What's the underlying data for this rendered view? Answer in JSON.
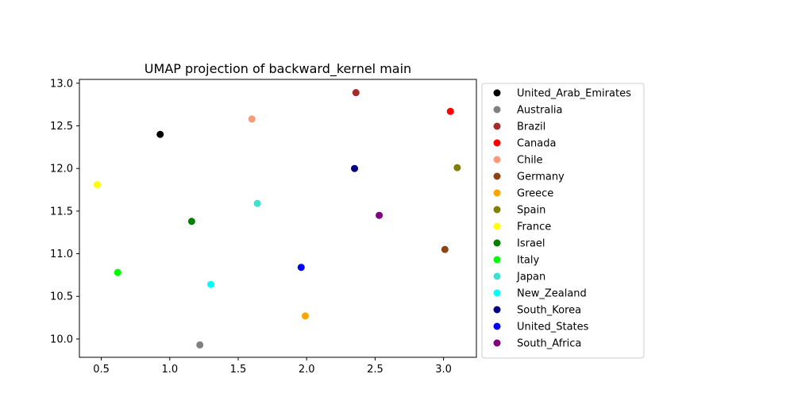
{
  "chart_data": {
    "type": "scatter",
    "title": "UMAP projection of backward_kernel main",
    "xlabel": "",
    "ylabel": "",
    "xlim": [
      0.34,
      3.24
    ],
    "ylim": [
      9.785,
      13.045
    ],
    "xticks": [
      0.5,
      1.0,
      1.5,
      2.0,
      2.5,
      3.0
    ],
    "yticks": [
      10.0,
      10.5,
      11.0,
      11.5,
      12.0,
      12.5,
      13.0
    ],
    "xtick_labels": [
      "0.5",
      "1.0",
      "1.5",
      "2.0",
      "2.5",
      "3.0"
    ],
    "ytick_labels": [
      "10.0",
      "10.5",
      "11.0",
      "11.5",
      "12.0",
      "12.5",
      "13.0"
    ],
    "grid": false,
    "legend_position": "outside right",
    "series": [
      {
        "name": "United_Arab_Emirates",
        "color": "#000000",
        "x": 0.93,
        "y": 12.4
      },
      {
        "name": "Australia",
        "color": "#808080",
        "x": 1.22,
        "y": 9.93
      },
      {
        "name": "Brazil",
        "color": "#a52a2a",
        "x": 2.36,
        "y": 12.89
      },
      {
        "name": "Canada",
        "color": "#ff0000",
        "x": 3.05,
        "y": 12.67
      },
      {
        "name": "Chile",
        "color": "#fa9a7a",
        "x": 1.6,
        "y": 12.58
      },
      {
        "name": "Germany",
        "color": "#8b4513",
        "x": 3.01,
        "y": 11.05
      },
      {
        "name": "Greece",
        "color": "#ffa500",
        "x": 1.99,
        "y": 10.27
      },
      {
        "name": "Spain",
        "color": "#808000",
        "x": 3.1,
        "y": 12.01
      },
      {
        "name": "France",
        "color": "#ffff00",
        "x": 0.47,
        "y": 11.81
      },
      {
        "name": "Israel",
        "color": "#008000",
        "x": 1.16,
        "y": 11.38
      },
      {
        "name": "Italy",
        "color": "#00ff00",
        "x": 0.62,
        "y": 10.78
      },
      {
        "name": "Japan",
        "color": "#40e0d0",
        "x": 1.64,
        "y": 11.59
      },
      {
        "name": "New_Zealand",
        "color": "#00ffff",
        "x": 1.3,
        "y": 10.64
      },
      {
        "name": "South_Korea",
        "color": "#000080",
        "x": 2.35,
        "y": 12.0
      },
      {
        "name": "United_States",
        "color": "#0000ff",
        "x": 1.96,
        "y": 10.84
      },
      {
        "name": "South_Africa",
        "color": "#800080",
        "x": 2.53,
        "y": 11.45
      }
    ]
  }
}
